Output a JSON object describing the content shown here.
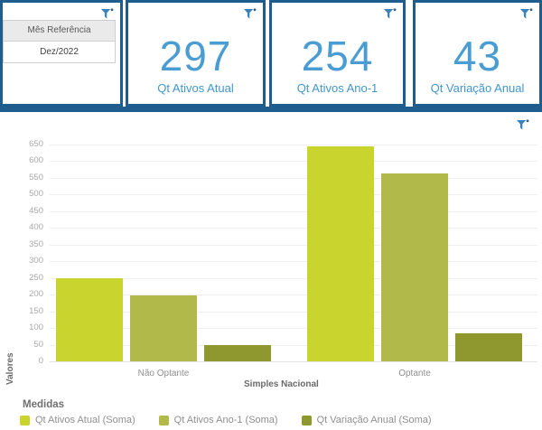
{
  "colors": {
    "panel_border": "#1f5d8e",
    "kpi_value": "#4a9dd2",
    "kpi_label": "#4296cb",
    "funnel_icon": "#3a80ba",
    "series1": "#c9d42e",
    "series2": "#b2b94b",
    "series3": "#8f982f"
  },
  "filter": {
    "title": "Mês Referência",
    "value": "Dez/2022"
  },
  "kpis": [
    {
      "value": "297",
      "label": "Qt Ativos Atual"
    },
    {
      "value": "254",
      "label": "Qt Ativos Ano-1"
    },
    {
      "value": "43",
      "label": "Qt Variação Anual"
    }
  ],
  "chart_data": {
    "type": "bar",
    "title": "",
    "categories": [
      "Não Optante",
      "Optante"
    ],
    "series": [
      {
        "name": "Qt Ativos Atual (Soma)",
        "color": "#c9d42e",
        "values": [
          248,
          645
        ]
      },
      {
        "name": "Qt Ativos Ano-1 (Soma)",
        "color": "#b2b94b",
        "values": [
          199,
          562
        ]
      },
      {
        "name": "Qt Variação Anual (Soma)",
        "color": "#8f982f",
        "values": [
          49,
          83
        ]
      }
    ],
    "xlabel": "Simples Nacional",
    "ylabel": "Valores",
    "ylim": [
      0,
      650
    ],
    "ytick_step": 50,
    "grid": true,
    "legend_title": "Medidas",
    "legend_position": "bottom"
  }
}
